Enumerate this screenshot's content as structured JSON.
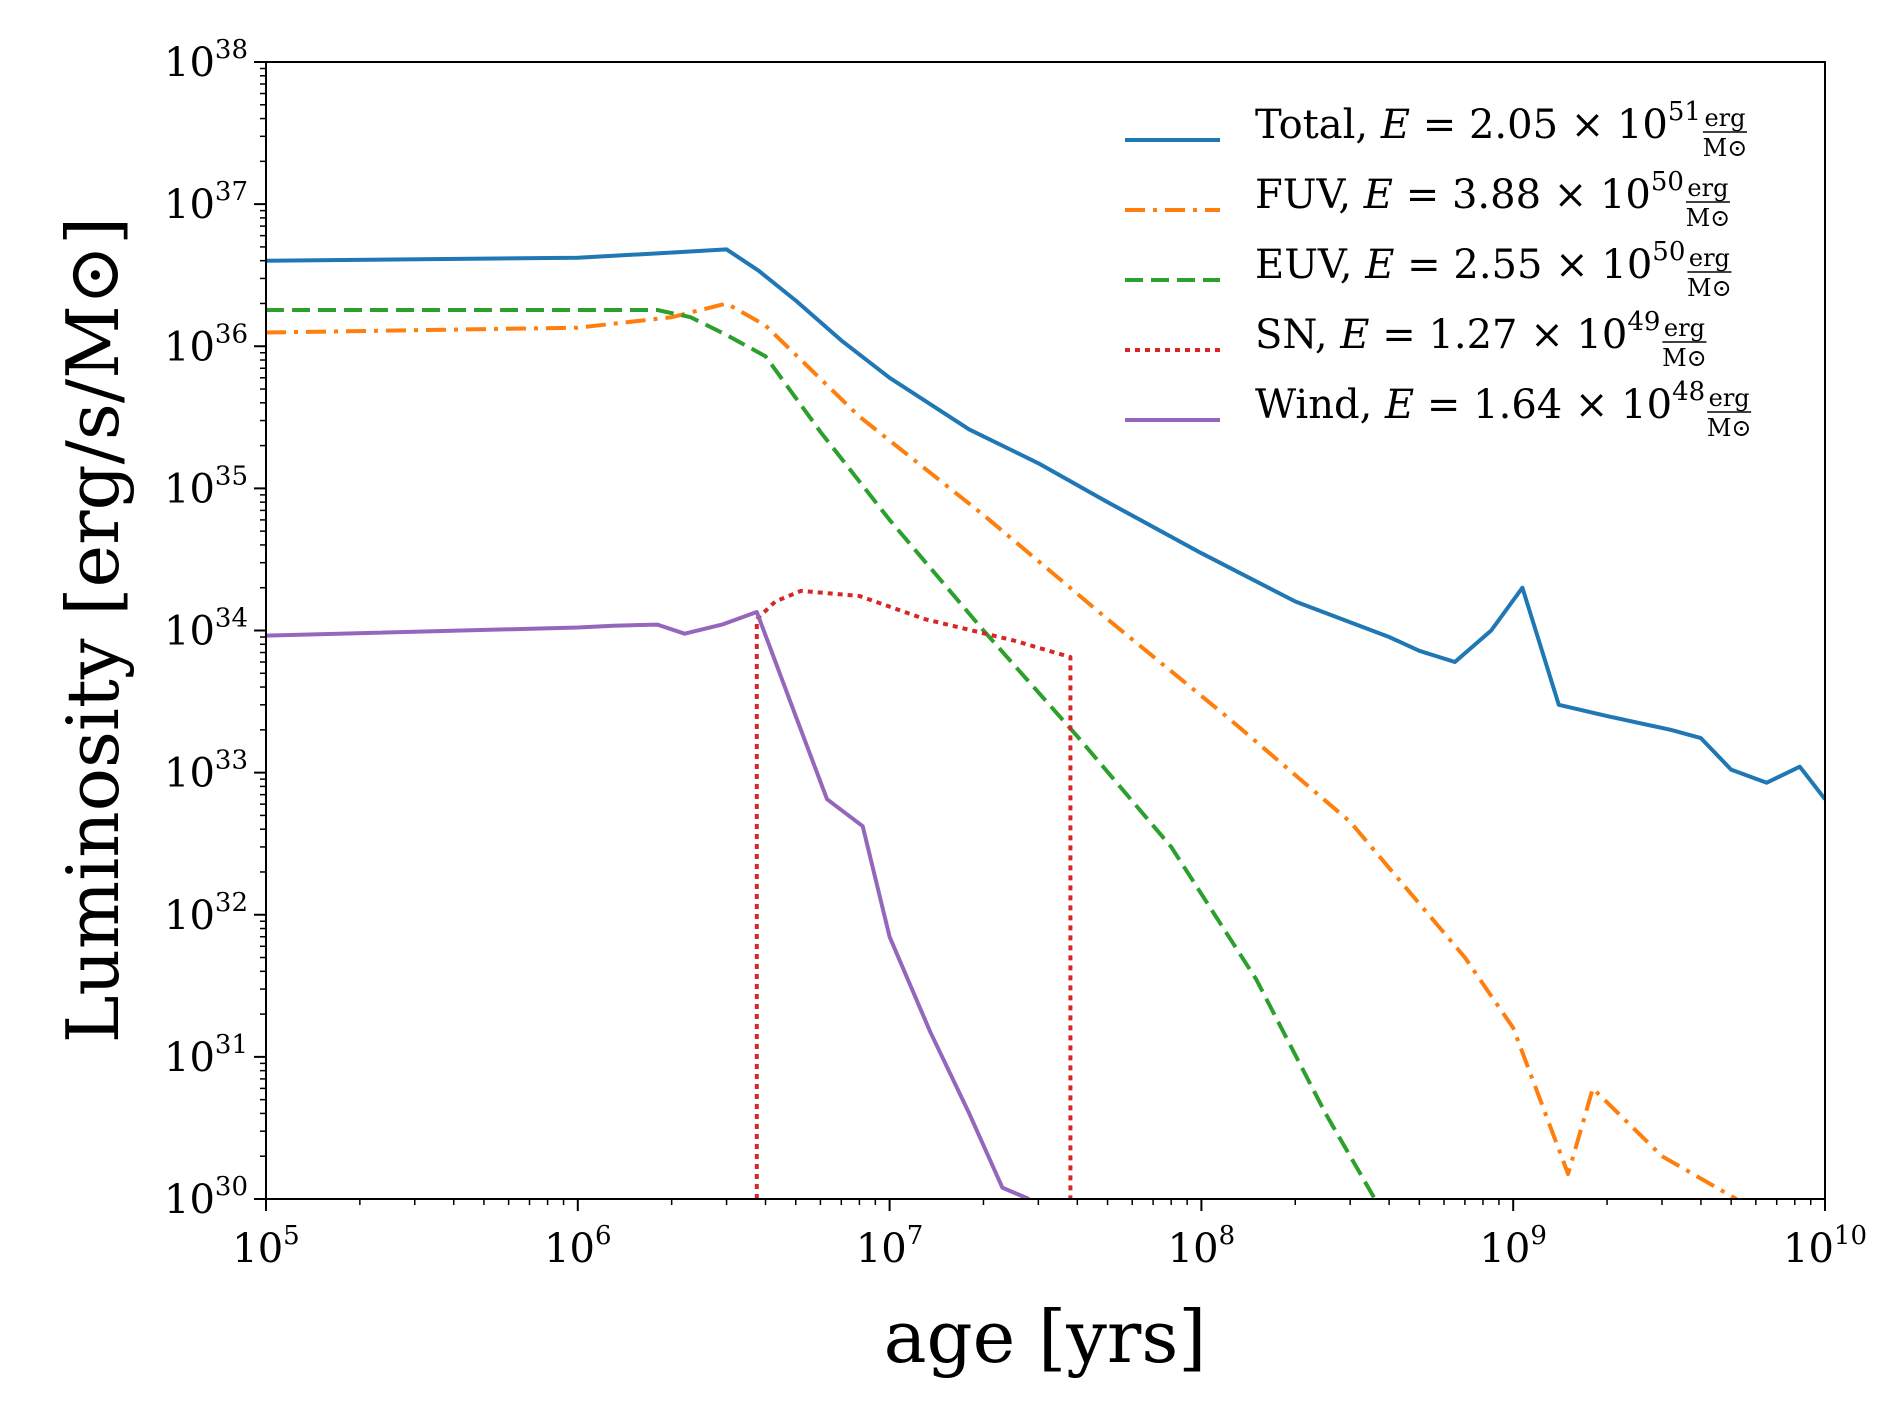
{
  "chart_data": {
    "type": "line",
    "xscale": "log",
    "yscale": "log",
    "xlabel": "age [yrs]",
    "ylabel": "Luminosity [erg/s/M⊙]",
    "xlim": [
      100000,
      10000000000
    ],
    "ylim": [
      1e+30,
      1e+38
    ],
    "x_ticks": [
      {
        "base": "10",
        "exp": "5",
        "value": 100000
      },
      {
        "base": "10",
        "exp": "6",
        "value": 1000000
      },
      {
        "base": "10",
        "exp": "7",
        "value": 10000000
      },
      {
        "base": "10",
        "exp": "8",
        "value": 100000000
      },
      {
        "base": "10",
        "exp": "9",
        "value": 1000000000
      },
      {
        "base": "10",
        "exp": "10",
        "value": 10000000000
      }
    ],
    "y_ticks": [
      {
        "base": "10",
        "exp": "30",
        "value": 1e+30
      },
      {
        "base": "10",
        "exp": "31",
        "value": 1e+31
      },
      {
        "base": "10",
        "exp": "32",
        "value": 1e+32
      },
      {
        "base": "10",
        "exp": "33",
        "value": 1e+33
      },
      {
        "base": "10",
        "exp": "34",
        "value": 1e+34
      },
      {
        "base": "10",
        "exp": "35",
        "value": 1e+35
      },
      {
        "base": "10",
        "exp": "36",
        "value": 1e+36
      },
      {
        "base": "10",
        "exp": "37",
        "value": 1e+37
      },
      {
        "base": "10",
        "exp": "38",
        "value": 1e+38
      }
    ],
    "legend_position": "top-right",
    "series": [
      {
        "name": "Total",
        "label_text": "Total,",
        "energy_mantissa": "2.05",
        "energy_exp": "51",
        "color": "#1f77b4",
        "dash": "solid",
        "points": [
          [
            100000,
            4e+36
          ],
          [
            1000000,
            4.2e+36
          ],
          [
            1800000,
            4.5e+36
          ],
          [
            3000000,
            4.8e+36
          ],
          [
            3800000,
            3.4e+36
          ],
          [
            5000000,
            2.1e+36
          ],
          [
            7000000,
            1.1e+36
          ],
          [
            10000000,
            6e+35
          ],
          [
            18000000,
            2.6e+35
          ],
          [
            30000000,
            1.5e+35
          ],
          [
            50000000,
            8e+34
          ],
          [
            100000000,
            3.5e+34
          ],
          [
            200000000,
            1.6e+34
          ],
          [
            400000000,
            9e+33
          ],
          [
            500000000,
            7.2e+33
          ],
          [
            650000000,
            6e+33
          ],
          [
            850000000,
            1e+34
          ],
          [
            1070000000,
            2e+34
          ],
          [
            1400000000,
            3e+33
          ],
          [
            2000000000,
            2.5e+33
          ],
          [
            3200000000,
            2e+33
          ],
          [
            4000000000,
            1.75e+33
          ],
          [
            5000000000,
            1.05e+33
          ],
          [
            6500000000,
            8.5e+32
          ],
          [
            8300000000,
            1.1e+33
          ],
          [
            10000000000,
            6.5e+32
          ]
        ]
      },
      {
        "name": "FUV",
        "label_text": "FUV,",
        "energy_mantissa": "3.88",
        "energy_exp": "50",
        "color": "#ff7f0e",
        "dash": "dashdot",
        "points": [
          [
            100000,
            1.25e+36
          ],
          [
            1000000,
            1.35e+36
          ],
          [
            2000000,
            1.6e+36
          ],
          [
            3000000,
            2e+36
          ],
          [
            4000000,
            1.4e+36
          ],
          [
            8000000,
            3.2e+35
          ],
          [
            20000000,
            6.5e+34
          ],
          [
            50000000,
            1.2e+34
          ],
          [
            120000000,
            2.5e+33
          ],
          [
            300000000,
            4.5e+32
          ],
          [
            700000000,
            5e+31
          ],
          [
            1000000000,
            1.6e+31
          ],
          [
            1500000000,
            1.5e+30
          ],
          [
            1800000000,
            6e+30
          ],
          [
            3000000000,
            2e+30
          ],
          [
            5200000000,
            1e+30
          ]
        ]
      },
      {
        "name": "EUV",
        "label_text": "EUV,",
        "energy_mantissa": "2.55",
        "energy_exp": "50",
        "color": "#2ca02c",
        "dash": "dashed",
        "points": [
          [
            100000,
            1.8e+36
          ],
          [
            1000000,
            1.8e+36
          ],
          [
            1800000,
            1.8e+36
          ],
          [
            2300000,
            1.6e+36
          ],
          [
            3000000,
            1.2e+36
          ],
          [
            4000000,
            8.5e+35
          ],
          [
            6000000,
            2.5e+35
          ],
          [
            10000000,
            6e+34
          ],
          [
            20000000,
            1e+34
          ],
          [
            40000000,
            1.8e+33
          ],
          [
            80000000,
            3e+32
          ],
          [
            150000000,
            3.5e+31
          ],
          [
            250000000,
            4e+30
          ],
          [
            360000000,
            1e+30
          ]
        ]
      },
      {
        "name": "SN",
        "label_text": "SN,",
        "energy_mantissa": "1.27",
        "energy_exp": "49",
        "color": "#d62728",
        "dash": "dotted",
        "points": [
          [
            3750000,
            1e+30
          ],
          [
            3750000,
            1.2e+34
          ],
          [
            4300000,
            1.6e+34
          ],
          [
            5200000,
            1.9e+34
          ],
          [
            8000000,
            1.75e+34
          ],
          [
            13000000,
            1.2e+34
          ],
          [
            25000000,
            8.5e+33
          ],
          [
            38000000,
            6.5e+33
          ],
          [
            38000000,
            1e+30
          ]
        ]
      },
      {
        "name": "Wind",
        "label_text": "Wind,",
        "energy_mantissa": "1.64",
        "energy_exp": "48",
        "color": "#9467bd",
        "dash": "solid",
        "points": [
          [
            100000,
            9.2e+33
          ],
          [
            1000000,
            1.05e+34
          ],
          [
            1300000,
            1.08e+34
          ],
          [
            1800000,
            1.1e+34
          ],
          [
            2200000,
            9.5e+33
          ],
          [
            2900000,
            1.1e+34
          ],
          [
            3750000,
            1.35e+34
          ],
          [
            5000000,
            2.5e+33
          ],
          [
            6300000,
            6.5e+32
          ],
          [
            8200000,
            4.2e+32
          ],
          [
            10000000,
            7e+31
          ],
          [
            13500000,
            1.5e+31
          ],
          [
            18000000,
            4e+30
          ],
          [
            23000000,
            1.2e+30
          ],
          [
            28000000,
            1e+30
          ]
        ]
      }
    ]
  }
}
